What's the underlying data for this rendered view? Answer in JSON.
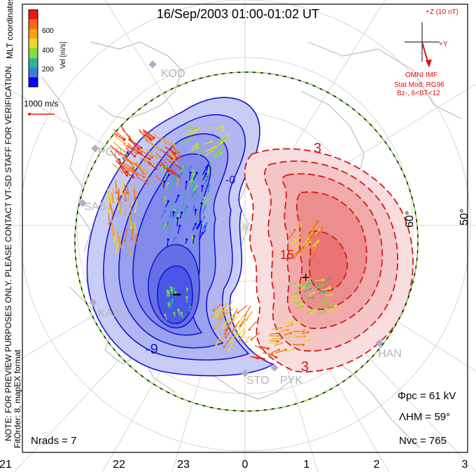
{
  "header": {
    "title": "16/Sep/2003 01:00-01:02 UT"
  },
  "colorbar": {
    "label": "Vel [m/s]",
    "ticks": [
      "600",
      "400",
      "200"
    ],
    "colors": [
      "#0000ff",
      "#3a7fd0",
      "#2db79b",
      "#7fdc3a",
      "#e8d82a",
      "#f6a317",
      "#f26a14",
      "#ee1a10"
    ]
  },
  "side_labels": {
    "coordinates": "MLT coordinates",
    "note": "NOTE: FOR PREVIEW PURPOSES ONLY. PLEASE CONTACT VT-SD STAFF FOR VERIFICATION.",
    "fitorder": "FitOrder: 8, mapEX format"
  },
  "scale_vector": {
    "label": "1000 m/s"
  },
  "imf": {
    "z_label": "+Z (10 nT)",
    "y_label": "+Y",
    "source": "OMNI IMF",
    "stat_mod": "Stat Mod: RG96",
    "bz": "Bz-, 6<BT<12"
  },
  "latitude_labels": {
    "lat_60": "60°",
    "lat_50": "50°"
  },
  "mlt_labels": [
    "21",
    "22",
    "23",
    "0",
    "1",
    "2",
    "3"
  ],
  "contour_labels": {
    "neg_9": "-9",
    "neg_3": "-3",
    "neg_0": "-0",
    "pos_3_top": "3",
    "pos_3_bottom": "3",
    "pos_15": "15"
  },
  "extrema": {
    "min_symbol": "−",
    "max_symbol": "+"
  },
  "stations": [
    "KOD",
    "PGR",
    "SAS",
    "KAP",
    "STO",
    "PYK",
    "HAN"
  ],
  "stats": {
    "phi_pc": "Φpc = 61 kV",
    "lambda_hm": "ΛHM = 59°",
    "n_vc": "Nvc = 765",
    "n_rads": "Nrads = 7"
  },
  "colors": {
    "negative_fill": "#4a57e6",
    "positive_fill": "#ef5a5a",
    "negative_line": "#1515d2",
    "positive_line": "#d41a1a",
    "hmb": "#8bd24a",
    "land": "#bdbdbd",
    "grid": "#d8d8d8"
  }
}
